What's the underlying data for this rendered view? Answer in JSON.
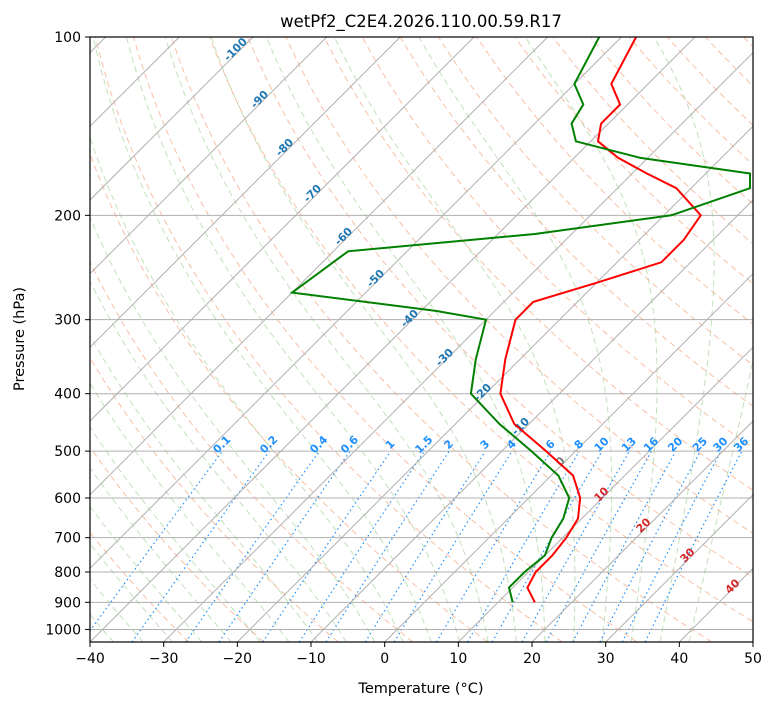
{
  "chart_data": {
    "type": "line",
    "title": "wetPf2_C2E4.2026.110.00.59.R17",
    "xlabel": "Temperature (°C)",
    "ylabel": "Pressure (hPa)",
    "xlim": [
      -40,
      50
    ],
    "ylim": [
      1050,
      100
    ],
    "yscale": "log",
    "skew": 45,
    "x_ticks": [
      -40,
      -30,
      -20,
      -10,
      0,
      10,
      20,
      30,
      40,
      50
    ],
    "y_ticks": [
      100,
      200,
      300,
      400,
      500,
      600,
      700,
      800,
      900,
      1000
    ],
    "grid": true,
    "series": [
      {
        "color": "#ff0000",
        "x": [
          15.0,
          12.0,
          11.0,
          11.0,
          10.5,
          9.5,
          7.0,
          3.0,
          -4.0,
          -12.0,
          -18.0,
          -22.0,
          -26.0,
          -26.0,
          -20.0,
          -14.0,
          -14.0,
          -15.0,
          -22.0,
          -28.0,
          -34.0,
          -39.0,
          -41.0,
          -41.0,
          -45.0,
          -48.0
        ],
        "pressure": [
          900,
          850,
          800,
          750,
          700,
          650,
          600,
          550,
          500,
          450,
          400,
          350,
          300,
          280,
          260,
          240,
          220,
          200,
          180,
          170,
          160,
          150,
          140,
          130,
          120,
          100
        ]
      },
      {
        "color": "#008000",
        "x": [
          12.0,
          9.5,
          9.5,
          10.0,
          8.5,
          7.5,
          5.5,
          1.0,
          -6.0,
          -14.0,
          -22.0,
          -26.0,
          -30.0,
          -38.0,
          -60.0,
          -58.0,
          -35.0,
          -19.0,
          -12.0,
          -14.0,
          -31.0,
          -42.0,
          -45.0,
          -46.0,
          -50.0,
          -53.0
        ],
        "pressure": [
          900,
          850,
          800,
          750,
          700,
          650,
          600,
          550,
          500,
          450,
          400,
          350,
          300,
          290,
          270,
          230,
          215,
          200,
          180,
          170,
          160,
          150,
          140,
          130,
          120,
          100
        ]
      }
    ],
    "mixing_ratio_labels": [
      "0.1",
      "0.2",
      "0.4",
      "0.6",
      "1",
      "1.5",
      "2",
      "3",
      "4",
      "6",
      "8",
      "10",
      "13",
      "16",
      "20",
      "25",
      "30",
      "36"
    ],
    "dry_adiabat_labels": [
      "-100",
      "-90",
      "-80",
      "-70",
      "-60",
      "-50",
      "-40",
      "-30",
      "-20",
      "-10"
    ],
    "moist_adiabat_labels": [
      "0",
      "10",
      "20",
      "30",
      "40"
    ],
    "colors": {
      "temperature": "#ff0000",
      "dewpoint": "#008000",
      "dry_adiabat_label": "#1f77b4",
      "mixing_ratio_label": "#1e90ff",
      "moist_adiabat_label": "#d62728"
    }
  }
}
